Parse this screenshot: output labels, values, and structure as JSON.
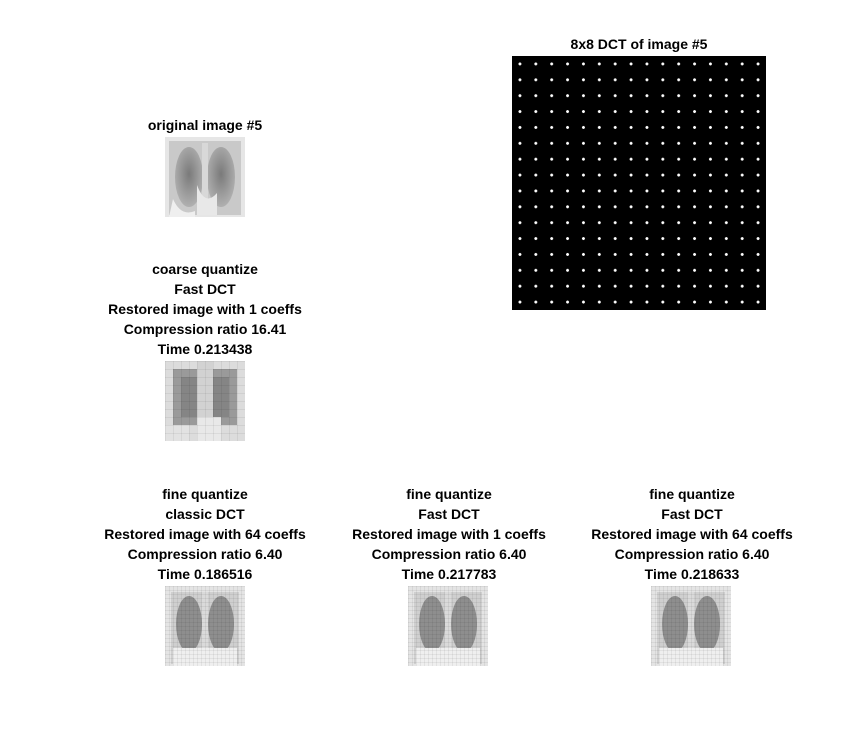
{
  "figure": {
    "original": {
      "title": "original image #5"
    },
    "dct": {
      "title": "8x8 DCT of image #5"
    },
    "coarse_fast": {
      "lines": [
        "coarse quantize",
        "Fast DCT",
        "Restored image with 1 coeffs",
        "Compression ratio 16.41",
        "Time 0.213438"
      ]
    },
    "fine_classic": {
      "lines": [
        "fine quantize",
        "classic DCT",
        "Restored image with 64 coeffs",
        "Compression ratio 6.40",
        "Time 0.186516"
      ]
    },
    "fine_fast_1": {
      "lines": [
        "fine quantize",
        "Fast DCT",
        "Restored image with 1 coeffs",
        "Compression ratio 6.40",
        "Time 0.217783"
      ]
    },
    "fine_fast_64": {
      "lines": [
        "fine quantize",
        "Fast DCT",
        "Restored image with 64 coeffs",
        "Compression ratio 6.40",
        "Time 0.218633"
      ]
    }
  }
}
